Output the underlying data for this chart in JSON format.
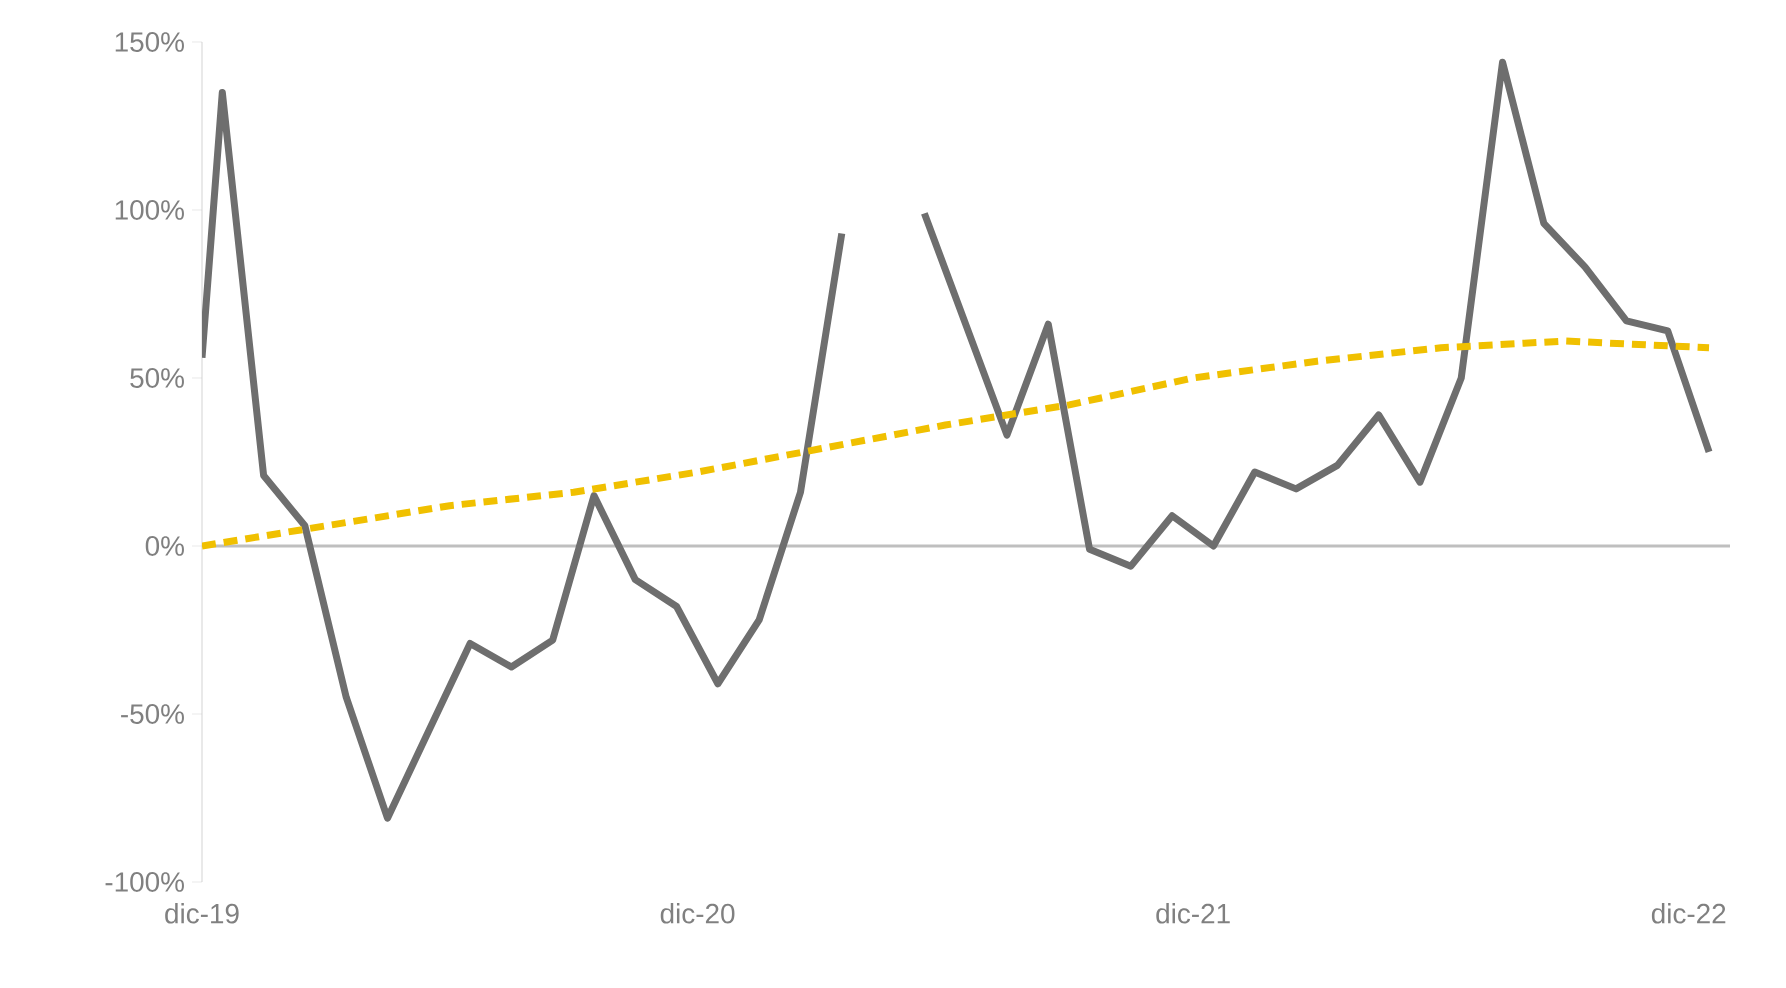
{
  "chart_data": {
    "type": "line",
    "x": [
      "2019-12-01",
      "2019-12-16",
      "2020-01-16",
      "2020-02-16",
      "2020-03-16",
      "2020-04-16",
      "2020-05-16",
      "2020-06-16",
      "2020-07-16",
      "2020-08-16",
      "2020-09-16",
      "2020-10-16",
      "2020-11-16",
      "2020-12-16",
      "2021-01-16",
      "2021-02-16",
      "2021-03-16",
      "2021-04-16",
      "2021-05-16",
      "2021-06-16",
      "2021-07-16",
      "2021-08-16",
      "2021-09-16",
      "2021-10-16",
      "2021-11-16",
      "2021-12-16",
      "2022-01-16",
      "2022-02-16",
      "2022-03-16",
      "2022-04-16",
      "2022-05-16",
      "2022-06-16",
      "2022-07-16",
      "2022-08-16",
      "2022-09-16",
      "2022-10-16",
      "2022-11-16",
      "2022-12-16"
    ],
    "series": [
      {
        "color": "#6e6e6e",
        "line_style": "solid",
        "values": [
          56,
          135,
          21,
          6,
          -45,
          -81,
          -55,
          -29,
          -36,
          -28,
          15,
          -10,
          -18,
          -41,
          -22,
          16,
          93,
          null,
          99,
          66,
          33,
          66,
          -1,
          -6,
          9,
          0,
          22,
          17,
          24,
          39,
          19,
          50,
          144,
          96,
          83,
          67,
          64,
          28
        ]
      },
      {
        "color": "#f0c000",
        "line_style": "dashed",
        "x": [
          "2019-12-01",
          "2020-03-01",
          "2020-06-01",
          "2020-09-01",
          "2020-12-01",
          "2021-03-01",
          "2021-06-01",
          "2021-09-01",
          "2021-12-01",
          "2022-03-01",
          "2022-06-01",
          "2022-09-01",
          "2022-12-16"
        ],
        "values": [
          0,
          6,
          12,
          16,
          22,
          29,
          36,
          42,
          50,
          55,
          59,
          61,
          59
        ]
      }
    ],
    "xlim": [
      "2019-12-01",
      "2023-01-01"
    ],
    "xticks": [
      {
        "value": "2019-12-01",
        "label": "dic-19"
      },
      {
        "value": "2020-12-01",
        "label": "dic-20"
      },
      {
        "value": "2021-12-01",
        "label": "dic-21"
      },
      {
        "value": "2022-12-01",
        "label": "dic-22"
      }
    ],
    "ylim": [
      -100,
      150
    ],
    "yticks": [
      {
        "value": -100,
        "label": "-100%"
      },
      {
        "value": -50,
        "label": "-50%"
      },
      {
        "value": 0,
        "label": "0%"
      },
      {
        "value": 50,
        "label": "50%"
      },
      {
        "value": 100,
        "label": "100%"
      },
      {
        "value": 150,
        "label": "150%"
      }
    ],
    "ref_lines": [
      {
        "axis": "y",
        "value": 0,
        "color": "#bfbfbf"
      }
    ],
    "grid": false,
    "marker": "none"
  }
}
